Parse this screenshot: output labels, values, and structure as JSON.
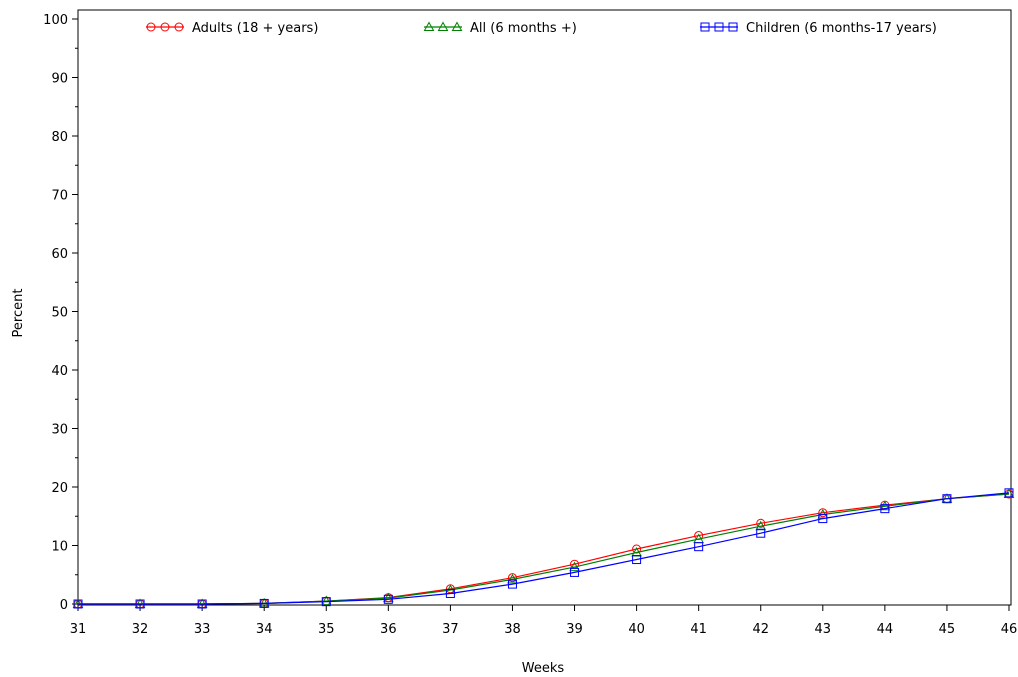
{
  "chart_data": {
    "type": "line",
    "title": "",
    "xlabel": "Weeks",
    "ylabel": "Percent",
    "xlim": [
      31,
      46
    ],
    "ylim": [
      0,
      100
    ],
    "x_ticks": [
      31,
      32,
      33,
      34,
      35,
      36,
      37,
      38,
      39,
      40,
      41,
      42,
      43,
      44,
      45,
      46
    ],
    "y_ticks": [
      0,
      10,
      20,
      30,
      40,
      50,
      60,
      70,
      80,
      90,
      100
    ],
    "grid": false,
    "legend_position": "top",
    "x": [
      31,
      32,
      33,
      34,
      35,
      36,
      37,
      38,
      39,
      40,
      41,
      42,
      43,
      44,
      45,
      46
    ],
    "series": [
      {
        "name": "Adults (18 + years)",
        "color": "#ff0000",
        "marker": "circle",
        "values": [
          0.0,
          0.0,
          0.0,
          0.1,
          0.5,
          1.1,
          2.6,
          4.5,
          6.8,
          9.4,
          11.7,
          13.8,
          15.6,
          16.9,
          18.0,
          18.8
        ]
      },
      {
        "name": "All (6 months +)",
        "color": "#008000",
        "marker": "triangle",
        "values": [
          0.0,
          0.0,
          0.0,
          0.1,
          0.5,
          1.0,
          2.4,
          4.2,
          6.3,
          8.8,
          11.1,
          13.3,
          15.3,
          16.7,
          18.0,
          18.8
        ]
      },
      {
        "name": "Children (6 months-17 years)",
        "color": "#0000ff",
        "marker": "square",
        "values": [
          0.0,
          0.0,
          0.0,
          0.1,
          0.4,
          0.8,
          1.8,
          3.4,
          5.4,
          7.6,
          9.8,
          12.1,
          14.6,
          16.3,
          18.0,
          19.0
        ]
      }
    ]
  }
}
